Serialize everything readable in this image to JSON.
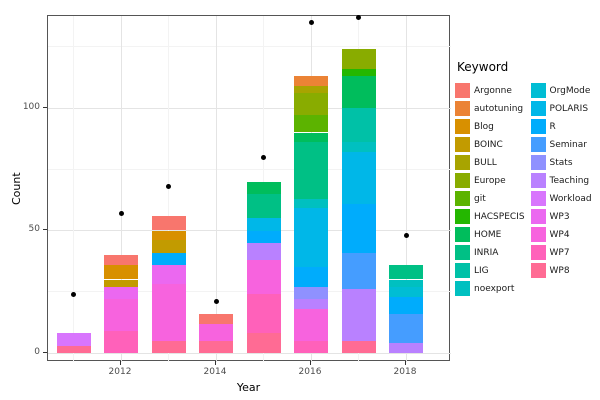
{
  "figure": {
    "background": "#ffffff",
    "panel_border_color": "#555555",
    "grid_major_color": "#e4e4e4",
    "grid_minor_color": "#f3f3f3",
    "point_color": "#000000"
  },
  "axes": {
    "x": {
      "title": "Year",
      "tick_labels": [
        "2012",
        "2014",
        "2016",
        "2018"
      ]
    },
    "y": {
      "title": "Count",
      "tick_labels": [
        "0",
        "50",
        "100"
      ]
    }
  },
  "legend": {
    "title": "Keyword",
    "column_split": 12
  },
  "chart_data": {
    "type": "bar",
    "stacked": true,
    "title": "",
    "xlabel": "Year",
    "ylabel": "Count",
    "categories": [
      2011,
      2012,
      2013,
      2014,
      2015,
      2016,
      2017,
      2018
    ],
    "x_major_ticks": [
      2012,
      2014,
      2016,
      2018
    ],
    "x_minor_ticks": [
      2011,
      2013,
      2015,
      2017
    ],
    "ylim": [
      0,
      141
    ],
    "y_major_gridlines": [
      0,
      50,
      100
    ],
    "y_minor_gridlines": [
      25,
      75,
      125
    ],
    "legend_position": "right",
    "grid": true,
    "bar_totals": [
      8,
      40,
      56,
      16,
      70,
      113,
      124,
      36
    ],
    "series": [
      {
        "name": "Argonne",
        "color": "#F8766D",
        "values": [
          0,
          4,
          6,
          4,
          0,
          0,
          0,
          0
        ]
      },
      {
        "name": "autotuning",
        "color": "#EB8335",
        "values": [
          0,
          0,
          0,
          0,
          0,
          4,
          0,
          0
        ]
      },
      {
        "name": "Blog",
        "color": "#D89000",
        "values": [
          0,
          6,
          4,
          0,
          0,
          0,
          0,
          0
        ]
      },
      {
        "name": "BOINC",
        "color": "#C29B00",
        "values": [
          0,
          3,
          5,
          0,
          0,
          0,
          0,
          0
        ]
      },
      {
        "name": "BULL",
        "color": "#A8A400",
        "values": [
          0,
          0,
          0,
          0,
          0,
          3,
          0,
          0
        ]
      },
      {
        "name": "Europe",
        "color": "#89AC00",
        "values": [
          0,
          0,
          0,
          0,
          0,
          9,
          8,
          0
        ]
      },
      {
        "name": "git",
        "color": "#5CB300",
        "values": [
          0,
          0,
          0,
          0,
          0,
          7,
          0,
          0
        ]
      },
      {
        "name": "HACSPECIS",
        "color": "#24B700",
        "values": [
          0,
          0,
          0,
          0,
          0,
          0,
          3,
          0
        ]
      },
      {
        "name": "HOME",
        "color": "#00BD5C",
        "values": [
          0,
          0,
          0,
          0,
          5,
          4,
          13,
          0
        ]
      },
      {
        "name": "INRIA",
        "color": "#00C085",
        "values": [
          0,
          0,
          0,
          0,
          10,
          23,
          0,
          6
        ]
      },
      {
        "name": "LIG",
        "color": "#00C1A7",
        "values": [
          0,
          0,
          0,
          0,
          0,
          0,
          14,
          0
        ]
      },
      {
        "name": "noexport",
        "color": "#00C0C0",
        "values": [
          0,
          0,
          0,
          0,
          0,
          4,
          4,
          3
        ]
      },
      {
        "name": "OrgMode",
        "color": "#00BDD4",
        "values": [
          0,
          0,
          0,
          0,
          0,
          0,
          0,
          4
        ]
      },
      {
        "name": "POLARIS",
        "color": "#00B7E8",
        "values": [
          0,
          0,
          0,
          0,
          5,
          24,
          21,
          0
        ]
      },
      {
        "name": "R",
        "color": "#00ACFC",
        "values": [
          0,
          0,
          5,
          0,
          5,
          8,
          20,
          7
        ]
      },
      {
        "name": "Seminar",
        "color": "#459DFF",
        "values": [
          0,
          0,
          0,
          0,
          0,
          0,
          15,
          12
        ]
      },
      {
        "name": "Stats",
        "color": "#8F91FF",
        "values": [
          0,
          0,
          0,
          0,
          0,
          5,
          0,
          0
        ]
      },
      {
        "name": "Teaching",
        "color": "#B981FF",
        "values": [
          0,
          0,
          0,
          0,
          7,
          4,
          21,
          4
        ]
      },
      {
        "name": "Workload",
        "color": "#D875FD",
        "values": [
          5,
          0,
          0,
          0,
          0,
          0,
          0,
          0
        ]
      },
      {
        "name": "WP3",
        "color": "#EB68F0",
        "values": [
          0,
          5,
          8,
          0,
          0,
          0,
          0,
          0
        ]
      },
      {
        "name": "WP4",
        "color": "#F763DE",
        "values": [
          0,
          13,
          23,
          7,
          14,
          13,
          0,
          0
        ]
      },
      {
        "name": "WP7",
        "color": "#FF61BA",
        "values": [
          0,
          9,
          0,
          0,
          16,
          5,
          0,
          0
        ]
      },
      {
        "name": "WP8",
        "color": "#FF6B94",
        "values": [
          3,
          0,
          5,
          5,
          8,
          0,
          5,
          0
        ]
      }
    ],
    "points": {
      "name": "yearly-totals-dots",
      "color": "#000000",
      "values": [
        24,
        57,
        68,
        21,
        80,
        135,
        137,
        48
      ]
    }
  }
}
